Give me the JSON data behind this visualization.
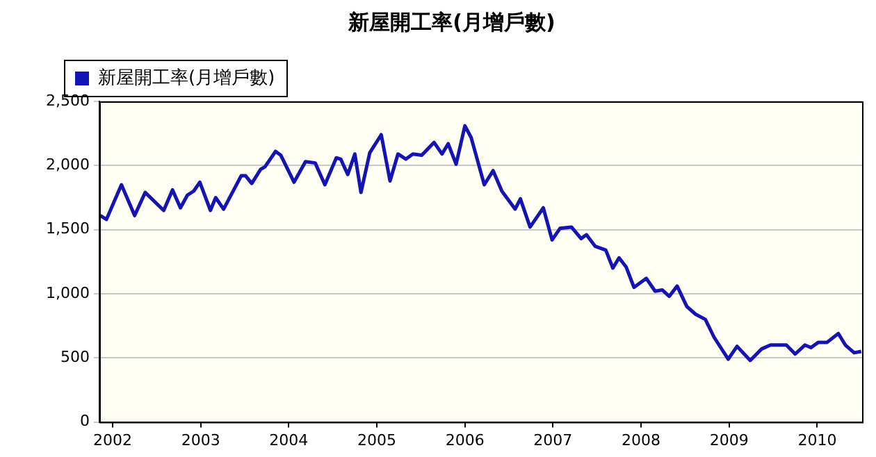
{
  "chart_data": {
    "type": "line",
    "title": "新屋開工率(月增戶數)",
    "xlim": [
      2001.85,
      2010.51
    ],
    "xticks": [
      2002,
      2003,
      2004,
      2005,
      2006,
      2007,
      2008,
      2009,
      2010
    ],
    "ylim": [
      0,
      2500
    ],
    "yticks": [
      {
        "value": 0,
        "label": "0"
      },
      {
        "value": 500,
        "label": "500"
      },
      {
        "value": 1000,
        "label": "1,000"
      },
      {
        "value": 1500,
        "label": "1,500"
      },
      {
        "value": 2000,
        "label": "2,000"
      },
      {
        "value": 2500,
        "label": "2,500"
      }
    ],
    "grid": "y",
    "legend": "top left",
    "marker": "none",
    "line_style": "solid",
    "series": [
      {
        "name": "新屋開工率(月增戶數)",
        "color": "#1414b4",
        "x": [
          2001.86,
          2001.93,
          2002.1,
          2002.25,
          2002.37,
          2002.58,
          2002.68,
          2002.77,
          2002.85,
          2002.92,
          2002.99,
          2003.11,
          2003.17,
          2003.26,
          2003.46,
          2003.51,
          2003.58,
          2003.68,
          2003.73,
          2003.85,
          2003.91,
          2004.06,
          2004.19,
          2004.3,
          2004.41,
          2004.54,
          2004.59,
          2004.67,
          2004.75,
          2004.82,
          2004.92,
          2005.05,
          2005.15,
          2005.24,
          2005.33,
          2005.41,
          2005.51,
          2005.65,
          2005.74,
          2005.81,
          2005.9,
          2006.0,
          2006.07,
          2006.22,
          2006.32,
          2006.42,
          2006.57,
          2006.63,
          2006.74,
          2006.89,
          2006.99,
          2007.08,
          2007.21,
          2007.32,
          2007.38,
          2007.48,
          2007.6,
          2007.68,
          2007.75,
          2007.83,
          2007.92,
          2008.06,
          2008.16,
          2008.24,
          2008.32,
          2008.41,
          2008.52,
          2008.62,
          2008.73,
          2008.83,
          2008.99,
          2009.09,
          2009.24,
          2009.37,
          2009.47,
          2009.65,
          2009.75,
          2009.86,
          2009.93,
          2010.01,
          2010.11,
          2010.24,
          2010.32,
          2010.42,
          2010.5
        ],
        "values": [
          1610,
          1580,
          1850,
          1610,
          1790,
          1650,
          1810,
          1670,
          1770,
          1800,
          1870,
          1650,
          1750,
          1660,
          1920,
          1920,
          1860,
          1970,
          1990,
          2110,
          2080,
          1870,
          2030,
          2020,
          1850,
          2060,
          2050,
          1930,
          2090,
          1790,
          2100,
          2240,
          1880,
          2090,
          2050,
          2090,
          2080,
          2180,
          2090,
          2170,
          2010,
          2310,
          2220,
          1850,
          1960,
          1800,
          1660,
          1740,
          1520,
          1670,
          1420,
          1510,
          1520,
          1430,
          1460,
          1370,
          1340,
          1200,
          1280,
          1210,
          1050,
          1120,
          1020,
          1030,
          980,
          1060,
          900,
          840,
          800,
          660,
          490,
          590,
          480,
          570,
          600,
          600,
          530,
          600,
          580,
          620,
          620,
          690,
          600,
          540,
          550
        ]
      }
    ]
  }
}
